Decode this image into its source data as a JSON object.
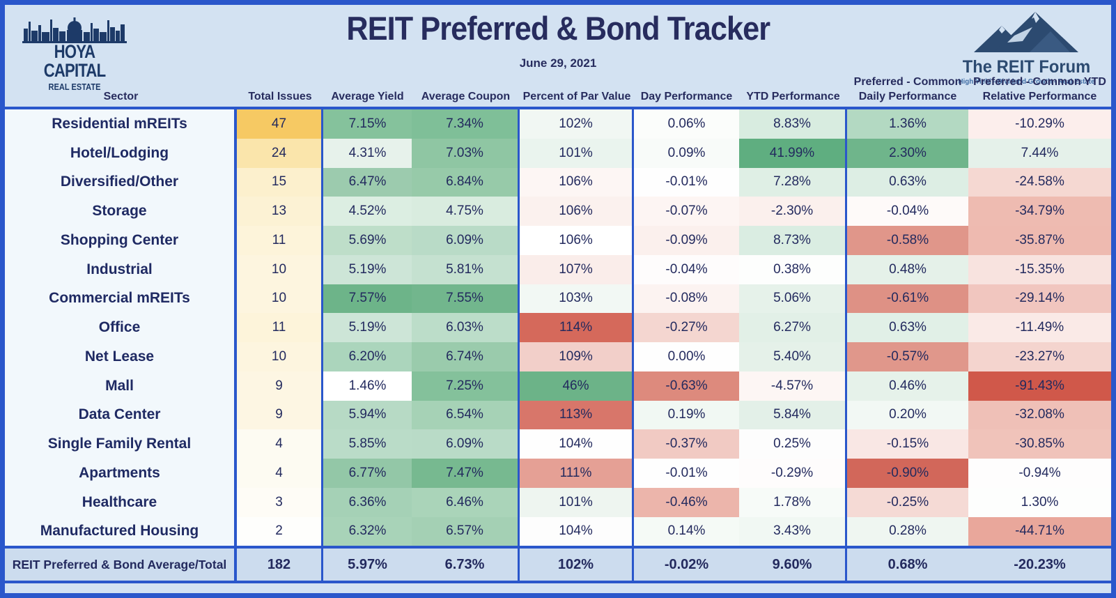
{
  "header": {
    "title": "REIT Preferred & Bond Tracker",
    "date": "June 29, 2021",
    "hoya_logo": {
      "icon": "city-skyline-icon",
      "name": "HOYA CAPITAL",
      "subtitle": "REAL ESTATE"
    },
    "reit_forum_logo": {
      "icon": "mountain-peaks-icon",
      "name": "The REIT Forum",
      "tagline": "High Yield - Dividend Growth - Real Estate"
    }
  },
  "chart_data": {
    "type": "table",
    "title": "REIT Preferred & Bond Tracker",
    "subtitle": "June 29, 2021",
    "columns": [
      "Sector",
      "Total Issues",
      "Average Yield",
      "Average Coupon",
      "Percent of Par Value",
      "Day Performance",
      "YTD Performance",
      "Preferred - Common\nDaily Performance",
      "Preferred - Common YTD\nRelative Performance"
    ],
    "rows": [
      [
        "Residential mREITs",
        "47",
        "7.15%",
        "7.34%",
        "102%",
        "0.06%",
        "8.83%",
        "1.36%",
        "-10.29%"
      ],
      [
        "Hotel/Lodging",
        "24",
        "4.31%",
        "7.03%",
        "101%",
        "0.09%",
        "41.99%",
        "2.30%",
        "7.44%"
      ],
      [
        "Diversified/Other",
        "15",
        "6.47%",
        "6.84%",
        "106%",
        "-0.01%",
        "7.28%",
        "0.63%",
        "-24.58%"
      ],
      [
        "Storage",
        "13",
        "4.52%",
        "4.75%",
        "106%",
        "-0.07%",
        "-2.30%",
        "-0.04%",
        "-34.79%"
      ],
      [
        "Shopping Center",
        "11",
        "5.69%",
        "6.09%",
        "106%",
        "-0.09%",
        "8.73%",
        "-0.58%",
        "-35.87%"
      ],
      [
        "Industrial",
        "10",
        "5.19%",
        "5.81%",
        "107%",
        "-0.04%",
        "0.38%",
        "0.48%",
        "-15.35%"
      ],
      [
        "Commercial mREITs",
        "10",
        "7.57%",
        "7.55%",
        "103%",
        "-0.08%",
        "5.06%",
        "-0.61%",
        "-29.14%"
      ],
      [
        "Office",
        "11",
        "5.19%",
        "6.03%",
        "114%",
        "-0.27%",
        "6.27%",
        "0.63%",
        "-11.49%"
      ],
      [
        "Net Lease",
        "10",
        "6.20%",
        "6.74%",
        "109%",
        "0.00%",
        "5.40%",
        "-0.57%",
        "-23.27%"
      ],
      [
        "Mall",
        "9",
        "1.46%",
        "7.25%",
        "46%",
        "-0.63%",
        "-4.57%",
        "0.46%",
        "-91.43%"
      ],
      [
        "Data Center",
        "9",
        "5.94%",
        "6.54%",
        "113%",
        "0.19%",
        "5.84%",
        "0.20%",
        "-32.08%"
      ],
      [
        "Single Family Rental",
        "4",
        "5.85%",
        "6.09%",
        "104%",
        "-0.37%",
        "0.25%",
        "-0.15%",
        "-30.85%"
      ],
      [
        "Apartments",
        "4",
        "6.77%",
        "7.47%",
        "111%",
        "-0.01%",
        "-0.29%",
        "-0.90%",
        "-0.94%"
      ],
      [
        "Healthcare",
        "3",
        "6.36%",
        "6.46%",
        "101%",
        "-0.46%",
        "1.78%",
        "-0.25%",
        "1.30%"
      ],
      [
        "Manufactured Housing",
        "2",
        "6.32%",
        "6.57%",
        "104%",
        "0.14%",
        "3.43%",
        "0.28%",
        "-44.71%"
      ]
    ],
    "total_row": [
      "REIT Preferred & Bond Average/Total",
      "182",
      "5.97%",
      "6.73%",
      "102%",
      "-0.02%",
      "9.60%",
      "0.68%",
      "-20.23%"
    ],
    "legend_position": "none",
    "grid": false
  },
  "cell_colors": {
    "sector_bg": "#f2f8fc",
    "total_bg": "#ccdcee",
    "rows": [
      [
        "#f6c963",
        "#85c29c",
        "#7fbf98",
        "#f1f7f3",
        "#fbfdfb",
        "#d8ece0",
        "#b3d9c2",
        "#fceeec"
      ],
      [
        "#fae5ab",
        "#e7f2eb",
        "#8fc6a3",
        "#eaf4ee",
        "#f8fbf9",
        "#5fae80",
        "#6fb58b",
        "#e5f1ea"
      ],
      [
        "#fcf0cd",
        "#9ccbae",
        "#97caa9",
        "#fdf6f4",
        "#fefefe",
        "#dfefe5",
        "#ddeee4",
        "#f5d8d2"
      ],
      [
        "#fcf2d4",
        "#dceee2",
        "#d9ecdf",
        "#fbf1ee",
        "#fdf5f3",
        "#fbf0ed",
        "#fefaf9",
        "#eebbb1"
      ],
      [
        "#fdf4da",
        "#bedec9",
        "#b9dbc7",
        "#ffffff",
        "#fbf0ed",
        "#daede2",
        "#e0968a",
        "#eebab0"
      ],
      [
        "#fdf5df",
        "#cde5d7",
        "#c5e1d0",
        "#faedea",
        "#fefcfc",
        "#fdfefd",
        "#e5f1e9",
        "#f8e3df"
      ],
      [
        "#fdf5df",
        "#6db489",
        "#72b68d",
        "#f2f8f4",
        "#fcf3f1",
        "#e6f2ea",
        "#de9185",
        "#f1c6bf"
      ],
      [
        "#fdf4da",
        "#cde5d7",
        "#bcddc9",
        "#d5695b",
        "#f4d6d0",
        "#e2f0e7",
        "#e1f0e7",
        "#faeae7"
      ],
      [
        "#fdf5df",
        "#abd5bc",
        "#9acbac",
        "#f2cfc9",
        "#fefefe",
        "#e5f1e9",
        "#e0978b",
        "#f4d4ce"
      ],
      [
        "#fdf6e3",
        "#ffffff",
        "#84c19b",
        "#6cb388",
        "#dd8a7d",
        "#fdf6f4",
        "#e6f2ea",
        "#d0584a"
      ],
      [
        "#fdf6e3",
        "#b7dac5",
        "#a6d2b6",
        "#d8766a",
        "#f1f8f3",
        "#e3f0e8",
        "#f2f8f4",
        "#efc0b7"
      ],
      [
        "#fdfbf2",
        "#badcc8",
        "#b9dbc7",
        "#fefefe",
        "#f1cac3",
        "#fdfdfd",
        "#f9e7e4",
        "#f0c3ba"
      ],
      [
        "#fdfbf2",
        "#93c7a7",
        "#77b990",
        "#e5a095",
        "#fefefe",
        "#fefcfc",
        "#d2675a",
        "#fefdfd"
      ],
      [
        "#fefcf6",
        "#a5d1b6",
        "#aad4b9",
        "#eef5f0",
        "#ecb5ab",
        "#f7fbf8",
        "#f5dad5",
        "#fdfefd"
      ],
      [
        "#fefefc",
        "#a8d3b8",
        "#a4d0b4",
        "#fdfdfd",
        "#f5faf6",
        "#f1f8f3",
        "#eff6f1",
        "#e9a79b"
      ]
    ]
  },
  "colors": {
    "frame_border": "#2a57cb",
    "band_background": "#d3e2f2",
    "navy_text": "#232a5e",
    "hoya_navy": "#1d3a68",
    "reit_forum_blue": "#2c4a70",
    "reit_forum_tagline": "#3f6ca5"
  }
}
